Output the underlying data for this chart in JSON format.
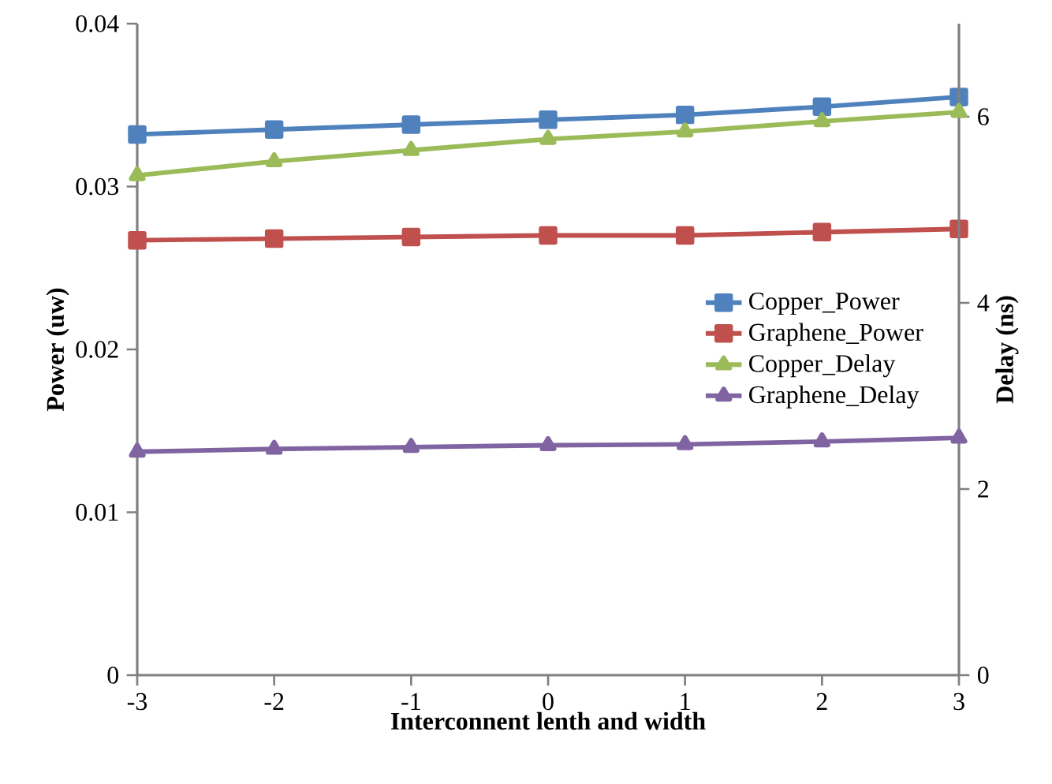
{
  "chart_data": {
    "type": "line",
    "xlabel": "Interconnent lenth and width",
    "ylabel": "Power (uw)",
    "y2label": "Delay (ns)",
    "x": [
      -3,
      -2,
      -1,
      0,
      1,
      2,
      3
    ],
    "series": [
      {
        "name": "Copper_Power",
        "color": "#4f81bd",
        "marker": "square",
        "values": [
          0.0332,
          0.0335,
          0.0338,
          0.0341,
          0.0344,
          0.0349,
          0.0355
        ]
      },
      {
        "name": "Graphene_Power",
        "color": "#c0504d",
        "marker": "square",
        "values": [
          0.0267,
          0.0268,
          0.0269,
          0.027,
          0.027,
          0.0272,
          0.0274
        ]
      },
      {
        "name": "Copper_Delay",
        "color": "#9bbb59",
        "marker": "triangle",
        "axis": "y2",
        "values": [
          5.37,
          5.52,
          5.64,
          5.76,
          5.84,
          5.95,
          6.05
        ]
      },
      {
        "name": "Graphene_Delay",
        "color": "#8064a2",
        "marker": "triangle",
        "axis": "y2",
        "values": [
          2.4,
          2.43,
          2.45,
          2.47,
          2.48,
          2.51,
          2.55
        ]
      }
    ],
    "xlim": [
      -3,
      3
    ],
    "xticks": [
      -3,
      -2,
      -1,
      0,
      1,
      2,
      3
    ],
    "ylim": [
      0,
      0.04
    ],
    "yticks": [
      0,
      0.01,
      0.02,
      0.03,
      0.04
    ],
    "y2lim": [
      0,
      7
    ],
    "y2ticks": [
      0,
      2,
      4,
      6
    ],
    "legend": "right"
  }
}
